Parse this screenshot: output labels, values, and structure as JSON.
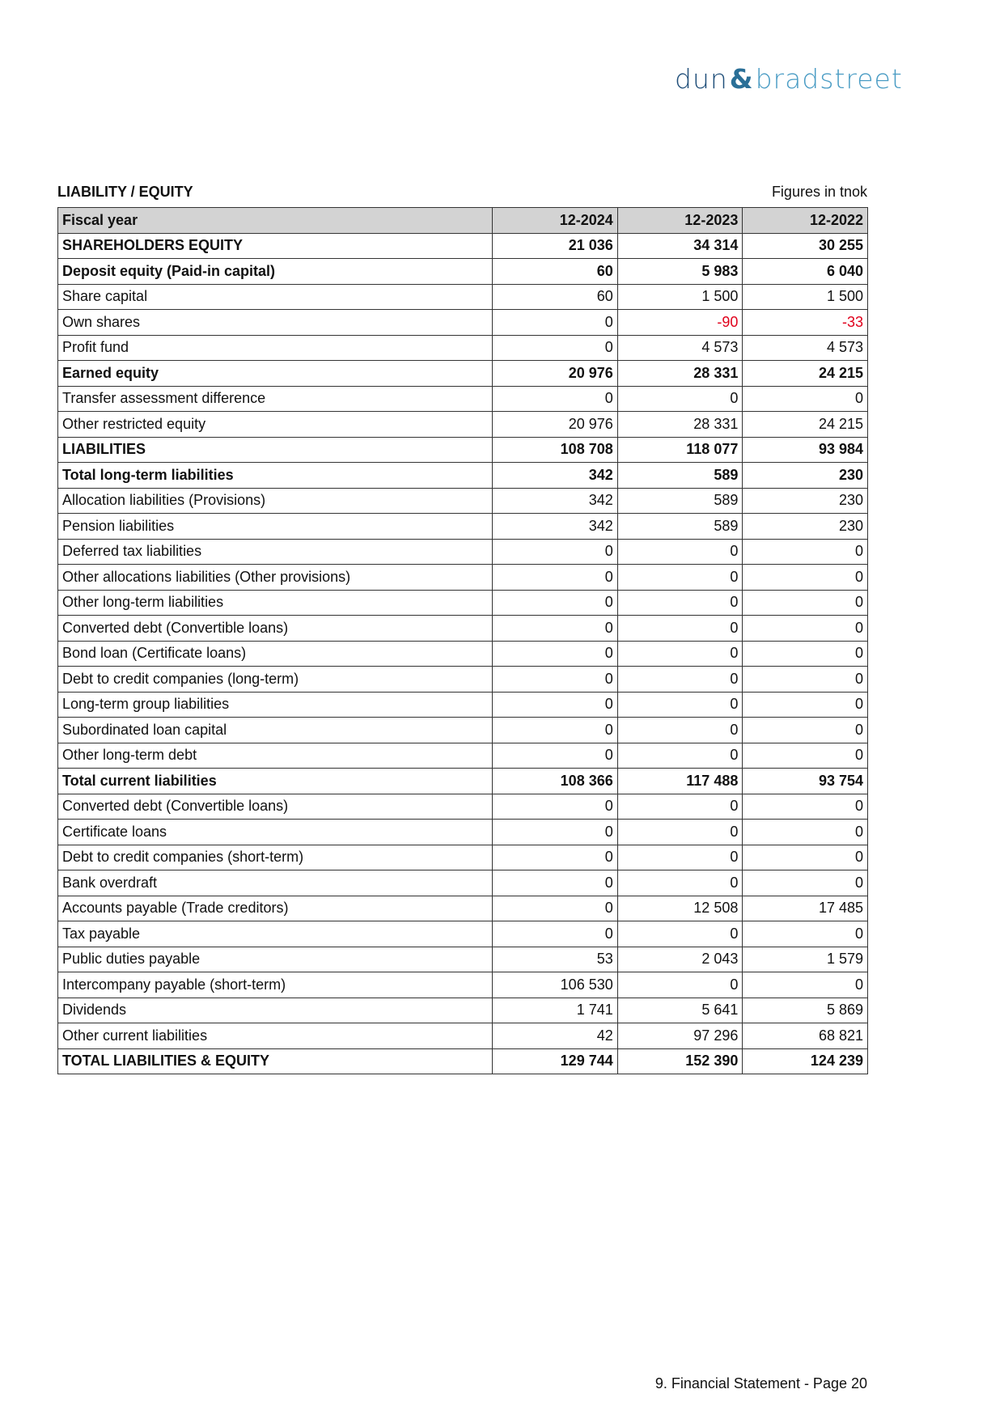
{
  "logo": {
    "text_left": "dun",
    "text_amp": "&",
    "text_right": "bradstreet"
  },
  "section_title": "LIABILITY / EQUITY",
  "units_note": "Figures in tnok",
  "colors": {
    "negative": "#e0001b",
    "header_bg": "#d3d3d3"
  },
  "table": {
    "headers": [
      "Fiscal year",
      "12-2024",
      "12-2023",
      "12-2022"
    ],
    "rows": [
      {
        "label": "SHAREHOLDERS EQUITY",
        "bold": true,
        "values": [
          "21 036",
          "34 314",
          "30 255"
        ]
      },
      {
        "label": "Deposit equity (Paid-in capital)",
        "bold": true,
        "values": [
          "60",
          "5 983",
          "6 040"
        ]
      },
      {
        "label": "Share capital",
        "bold": false,
        "values": [
          "60",
          "1 500",
          "1 500"
        ]
      },
      {
        "label": "Own shares",
        "bold": false,
        "values": [
          "0",
          "-90",
          "-33"
        ]
      },
      {
        "label": "Profit fund",
        "bold": false,
        "values": [
          "0",
          "4 573",
          "4 573"
        ]
      },
      {
        "label": "Earned equity",
        "bold": true,
        "values": [
          "20 976",
          "28 331",
          "24 215"
        ]
      },
      {
        "label": "Transfer assessment difference",
        "bold": false,
        "values": [
          "0",
          "0",
          "0"
        ]
      },
      {
        "label": "Other restricted equity",
        "bold": false,
        "values": [
          "20 976",
          "28 331",
          "24 215"
        ]
      },
      {
        "label": "LIABILITIES",
        "bold": true,
        "values": [
          "108 708",
          "118 077",
          "93 984"
        ]
      },
      {
        "label": "Total long-term liabilities",
        "bold": true,
        "values": [
          "342",
          "589",
          "230"
        ]
      },
      {
        "label": "Allocation liabilities (Provisions)",
        "bold": false,
        "values": [
          "342",
          "589",
          "230"
        ]
      },
      {
        "label": "Pension liabilities",
        "bold": false,
        "values": [
          "342",
          "589",
          "230"
        ]
      },
      {
        "label": "Deferred tax liabilities",
        "bold": false,
        "values": [
          "0",
          "0",
          "0"
        ]
      },
      {
        "label": "Other allocations liabilities (Other provisions)",
        "bold": false,
        "values": [
          "0",
          "0",
          "0"
        ]
      },
      {
        "label": "Other long-term liabilities",
        "bold": false,
        "values": [
          "0",
          "0",
          "0"
        ]
      },
      {
        "label": "Converted debt (Convertible loans)",
        "bold": false,
        "values": [
          "0",
          "0",
          "0"
        ]
      },
      {
        "label": "Bond loan (Certificate loans)",
        "bold": false,
        "values": [
          "0",
          "0",
          "0"
        ]
      },
      {
        "label": "Debt to credit companies (long-term)",
        "bold": false,
        "values": [
          "0",
          "0",
          "0"
        ]
      },
      {
        "label": "Long-term group liabilities",
        "bold": false,
        "values": [
          "0",
          "0",
          "0"
        ]
      },
      {
        "label": "Subordinated loan capital",
        "bold": false,
        "values": [
          "0",
          "0",
          "0"
        ]
      },
      {
        "label": "Other long-term debt",
        "bold": false,
        "values": [
          "0",
          "0",
          "0"
        ]
      },
      {
        "label": "Total current liabilities",
        "bold": true,
        "values": [
          "108 366",
          "117 488",
          "93 754"
        ]
      },
      {
        "label": "Converted debt (Convertible loans)",
        "bold": false,
        "values": [
          "0",
          "0",
          "0"
        ]
      },
      {
        "label": "Certificate loans",
        "bold": false,
        "values": [
          "0",
          "0",
          "0"
        ]
      },
      {
        "label": "Debt to credit companies (short-term)",
        "bold": false,
        "values": [
          "0",
          "0",
          "0"
        ]
      },
      {
        "label": "Bank overdraft",
        "bold": false,
        "values": [
          "0",
          "0",
          "0"
        ]
      },
      {
        "label": "Accounts payable (Trade creditors)",
        "bold": false,
        "values": [
          "0",
          "12 508",
          "17 485"
        ]
      },
      {
        "label": "Tax payable",
        "bold": false,
        "values": [
          "0",
          "0",
          "0"
        ]
      },
      {
        "label": "Public duties payable",
        "bold": false,
        "values": [
          "53",
          "2 043",
          "1 579"
        ]
      },
      {
        "label": "Intercompany payable (short-term)",
        "bold": false,
        "values": [
          "106 530",
          "0",
          "0"
        ]
      },
      {
        "label": "Dividends",
        "bold": false,
        "values": [
          "1 741",
          "5 641",
          "5 869"
        ]
      },
      {
        "label": "Other current liabilities",
        "bold": false,
        "values": [
          "42",
          "97 296",
          "68 821"
        ]
      },
      {
        "label": "TOTAL LIABILITIES & EQUITY",
        "bold": true,
        "values": [
          "129 744",
          "152 390",
          "124 239"
        ]
      }
    ]
  },
  "footer": "9. Financial Statement - Page 20"
}
